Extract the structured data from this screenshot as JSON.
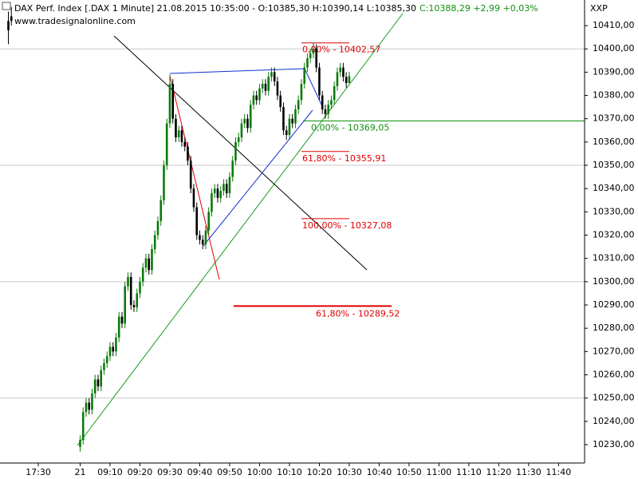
{
  "chart_data": {
    "type": "candlestick",
    "title": "DAX Perf. Index [.DAX  1 Minute] 21.08.2015 10:35:00 - O:10385,30 H:10390,14 L:10385,30",
    "subtitle": "C:10388,29 +2,99 +0,03%",
    "source": "www.tradesignalonline.com",
    "axis_label": "XXP",
    "up_color": "#0a7a0a",
    "down_color": "#000000",
    "x": [
      -24,
      -23,
      0,
      1,
      2,
      3,
      4,
      5,
      6,
      7,
      8,
      9,
      10,
      11,
      12,
      13,
      14,
      15,
      16,
      17,
      18,
      19,
      20,
      21,
      22,
      23,
      24,
      25,
      26,
      27,
      28,
      29,
      30,
      31,
      32,
      33,
      34,
      35,
      36,
      37,
      38,
      39,
      40,
      41,
      42,
      43,
      44,
      45,
      46,
      47,
      48,
      49,
      50,
      51,
      52,
      53,
      54,
      55,
      56,
      57,
      58,
      59,
      60,
      61,
      62,
      63,
      64,
      65,
      66,
      67,
      68,
      69,
      70,
      71,
      72,
      73,
      74,
      75,
      76,
      77,
      78,
      79,
      80,
      81,
      82,
      83,
      84,
      85,
      86,
      87,
      88,
      89,
      90
    ],
    "open": [
      10412,
      10414,
      10229,
      10232,
      10244,
      10248,
      10245,
      10252,
      10258,
      10255,
      10262,
      10265,
      10268,
      10272,
      10270,
      10276,
      10285,
      10282,
      10298,
      10302,
      10290,
      10289,
      10295,
      10300,
      10306,
      10310,
      10305,
      10314,
      10320,
      10326,
      10335,
      10350,
      10368,
      10385,
      10370,
      10362,
      10365,
      10360,
      10358,
      10352,
      10340,
      10332,
      10320,
      10318,
      10316,
      10322,
      10330,
      10338,
      10340,
      10336,
      10339,
      10342,
      10338,
      10345,
      10352,
      10360,
      10362,
      10368,
      10370,
      10366,
      10376,
      10380,
      10378,
      10383,
      10385,
      10382,
      10388,
      10390,
      10386,
      10380,
      10375,
      10365,
      10363,
      10370,
      10368,
      10374,
      10378,
      10385,
      10392,
      10396,
      10398,
      10400,
      10392,
      10380,
      10374,
      10372,
      10376,
      10378,
      10384,
      10390,
      10392,
      10388,
      10385.3
    ],
    "high": [
      10416,
      10418,
      10234,
      10246,
      10250,
      10250,
      10254,
      10260,
      10260,
      10264,
      10267,
      10270,
      10274,
      10274,
      10278,
      10287,
      10287,
      10300,
      10304,
      10304,
      10292,
      10297,
      10302,
      10308,
      10312,
      10312,
      10316,
      10322,
      10328,
      10337,
      10352,
      10370,
      10389,
      10387,
      10372,
      10367,
      10367,
      10362,
      10360,
      10354,
      10342,
      10334,
      10322,
      10320,
      10324,
      10332,
      10340,
      10342,
      10342,
      10341,
      10344,
      10344,
      10347,
      10354,
      10362,
      10364,
      10370,
      10372,
      10372,
      10378,
      10382,
      10382,
      10385,
      10387,
      10387,
      10390,
      10392,
      10392,
      10388,
      10382,
      10377,
      10367,
      10372,
      10372,
      10376,
      10380,
      10387,
      10394,
      10398,
      10400,
      10402.57,
      10402,
      10394,
      10382,
      10376,
      10378,
      10380,
      10386,
      10392,
      10394,
      10394,
      10390,
      10390.14
    ],
    "low": [
      10402,
      10410,
      10227,
      10230,
      10242,
      10243,
      10243,
      10250,
      10253,
      10253,
      10260,
      10263,
      10266,
      10268,
      10268,
      10274,
      10280,
      10280,
      10296,
      10288,
      10287,
      10287,
      10293,
      10298,
      10304,
      10303,
      10303,
      10312,
      10318,
      10324,
      10333,
      10348,
      10366,
      10368,
      10360,
      10360,
      10358,
      10356,
      10350,
      10338,
      10330,
      10318,
      10316,
      10314,
      10314,
      10320,
      10328,
      10336,
      10334,
      10334,
      10337,
      10336,
      10336,
      10343,
      10350,
      10358,
      10360,
      10366,
      10364,
      10364,
      10374,
      10376,
      10376,
      10381,
      10380,
      10380,
      10386,
      10384,
      10378,
      10373,
      10363,
      10361,
      10361,
      10366,
      10366,
      10372,
      10376,
      10383,
      10390,
      10394,
      10396,
      10390,
      10378,
      10372,
      10370,
      10370,
      10374,
      10376,
      10382,
      10388,
      10386,
      10383.3,
      10385.3
    ],
    "close": [
      10408,
      10412,
      10232,
      10244,
      10248,
      10245,
      10252,
      10258,
      10255,
      10262,
      10265,
      10268,
      10272,
      10270,
      10276,
      10285,
      10282,
      10298,
      10302,
      10290,
      10289,
      10295,
      10300,
      10306,
      10310,
      10305,
      10314,
      10320,
      10326,
      10335,
      10350,
      10368,
      10385,
      10370,
      10362,
      10365,
      10360,
      10358,
      10352,
      10340,
      10332,
      10320,
      10318,
      10316,
      10322,
      10330,
      10338,
      10340,
      10336,
      10339,
      10342,
      10338,
      10345,
      10352,
      10360,
      10362,
      10368,
      10370,
      10366,
      10376,
      10380,
      10378,
      10383,
      10385,
      10382,
      10388,
      10390,
      10386,
      10380,
      10375,
      10365,
      10363,
      10370,
      10368,
      10374,
      10378,
      10385,
      10392,
      10396,
      10398,
      10400,
      10392,
      10380,
      10374,
      10372,
      10376,
      10378,
      10384,
      10390,
      10392,
      10388,
      10385.3,
      10388.29
    ],
    "xlim": [
      -26.8,
      168.7
    ],
    "xticks": [
      {
        "value": -14,
        "label": "17:30"
      },
      {
        "value": 0,
        "label": "21"
      },
      {
        "value": 10,
        "label": "09:10"
      },
      {
        "value": 20,
        "label": "09:20"
      },
      {
        "value": 30,
        "label": "09:30"
      },
      {
        "value": 40,
        "label": "09:40"
      },
      {
        "value": 50,
        "label": "09:50"
      },
      {
        "value": 60,
        "label": "10:00"
      },
      {
        "value": 70,
        "label": "10:10"
      },
      {
        "value": 80,
        "label": "10:20"
      },
      {
        "value": 90,
        "label": "10:30"
      },
      {
        "value": 100,
        "label": "10:40"
      },
      {
        "value": 110,
        "label": "10:50"
      },
      {
        "value": 120,
        "label": "11:00"
      },
      {
        "value": 130,
        "label": "11:10"
      },
      {
        "value": 140,
        "label": "11:20"
      },
      {
        "value": 150,
        "label": "11:30"
      },
      {
        "value": 160,
        "label": "11:40"
      }
    ],
    "ylim": [
      10222.1,
      10421
    ],
    "yticks": [
      {
        "value": 10230,
        "label": "10230,00"
      },
      {
        "value": 10240,
        "label": "10240,00"
      },
      {
        "value": 10250,
        "label": "10250,00"
      },
      {
        "value": 10260,
        "label": "10260,00"
      },
      {
        "value": 10270,
        "label": "10270,00"
      },
      {
        "value": 10280,
        "label": "10280,00"
      },
      {
        "value": 10290,
        "label": "10290,00"
      },
      {
        "value": 10300,
        "label": "10300,00"
      },
      {
        "value": 10310,
        "label": "10310,00"
      },
      {
        "value": 10320,
        "label": "10320,00"
      },
      {
        "value": 10330,
        "label": "10330,00"
      },
      {
        "value": 10340,
        "label": "10340,00"
      },
      {
        "value": 10350,
        "label": "10350,00"
      },
      {
        "value": 10360,
        "label": "10360,00"
      },
      {
        "value": 10370,
        "label": "10370,00"
      },
      {
        "value": 10380,
        "label": "10380,00"
      },
      {
        "value": 10390,
        "label": "10390,00"
      },
      {
        "value": 10400,
        "label": "10400,00"
      },
      {
        "value": 10410,
        "label": "10410,00"
      }
    ],
    "grid": true,
    "annotations": [
      {
        "value": 10402.57,
        "label": "0,00% - 10402,57",
        "color": "#e00000"
      },
      {
        "value": 10369.05,
        "label": "0,00% - 10369,05",
        "color": "#109010"
      },
      {
        "value": 10355.91,
        "label": "61,80% - 10355,91",
        "color": "#e00000"
      },
      {
        "value": 10327.08,
        "label": "100,00% - 10327,08",
        "color": "#e00000"
      },
      {
        "value": 10289.52,
        "label": "61,80% - 10289,52",
        "color": "#e00000"
      }
    ]
  }
}
